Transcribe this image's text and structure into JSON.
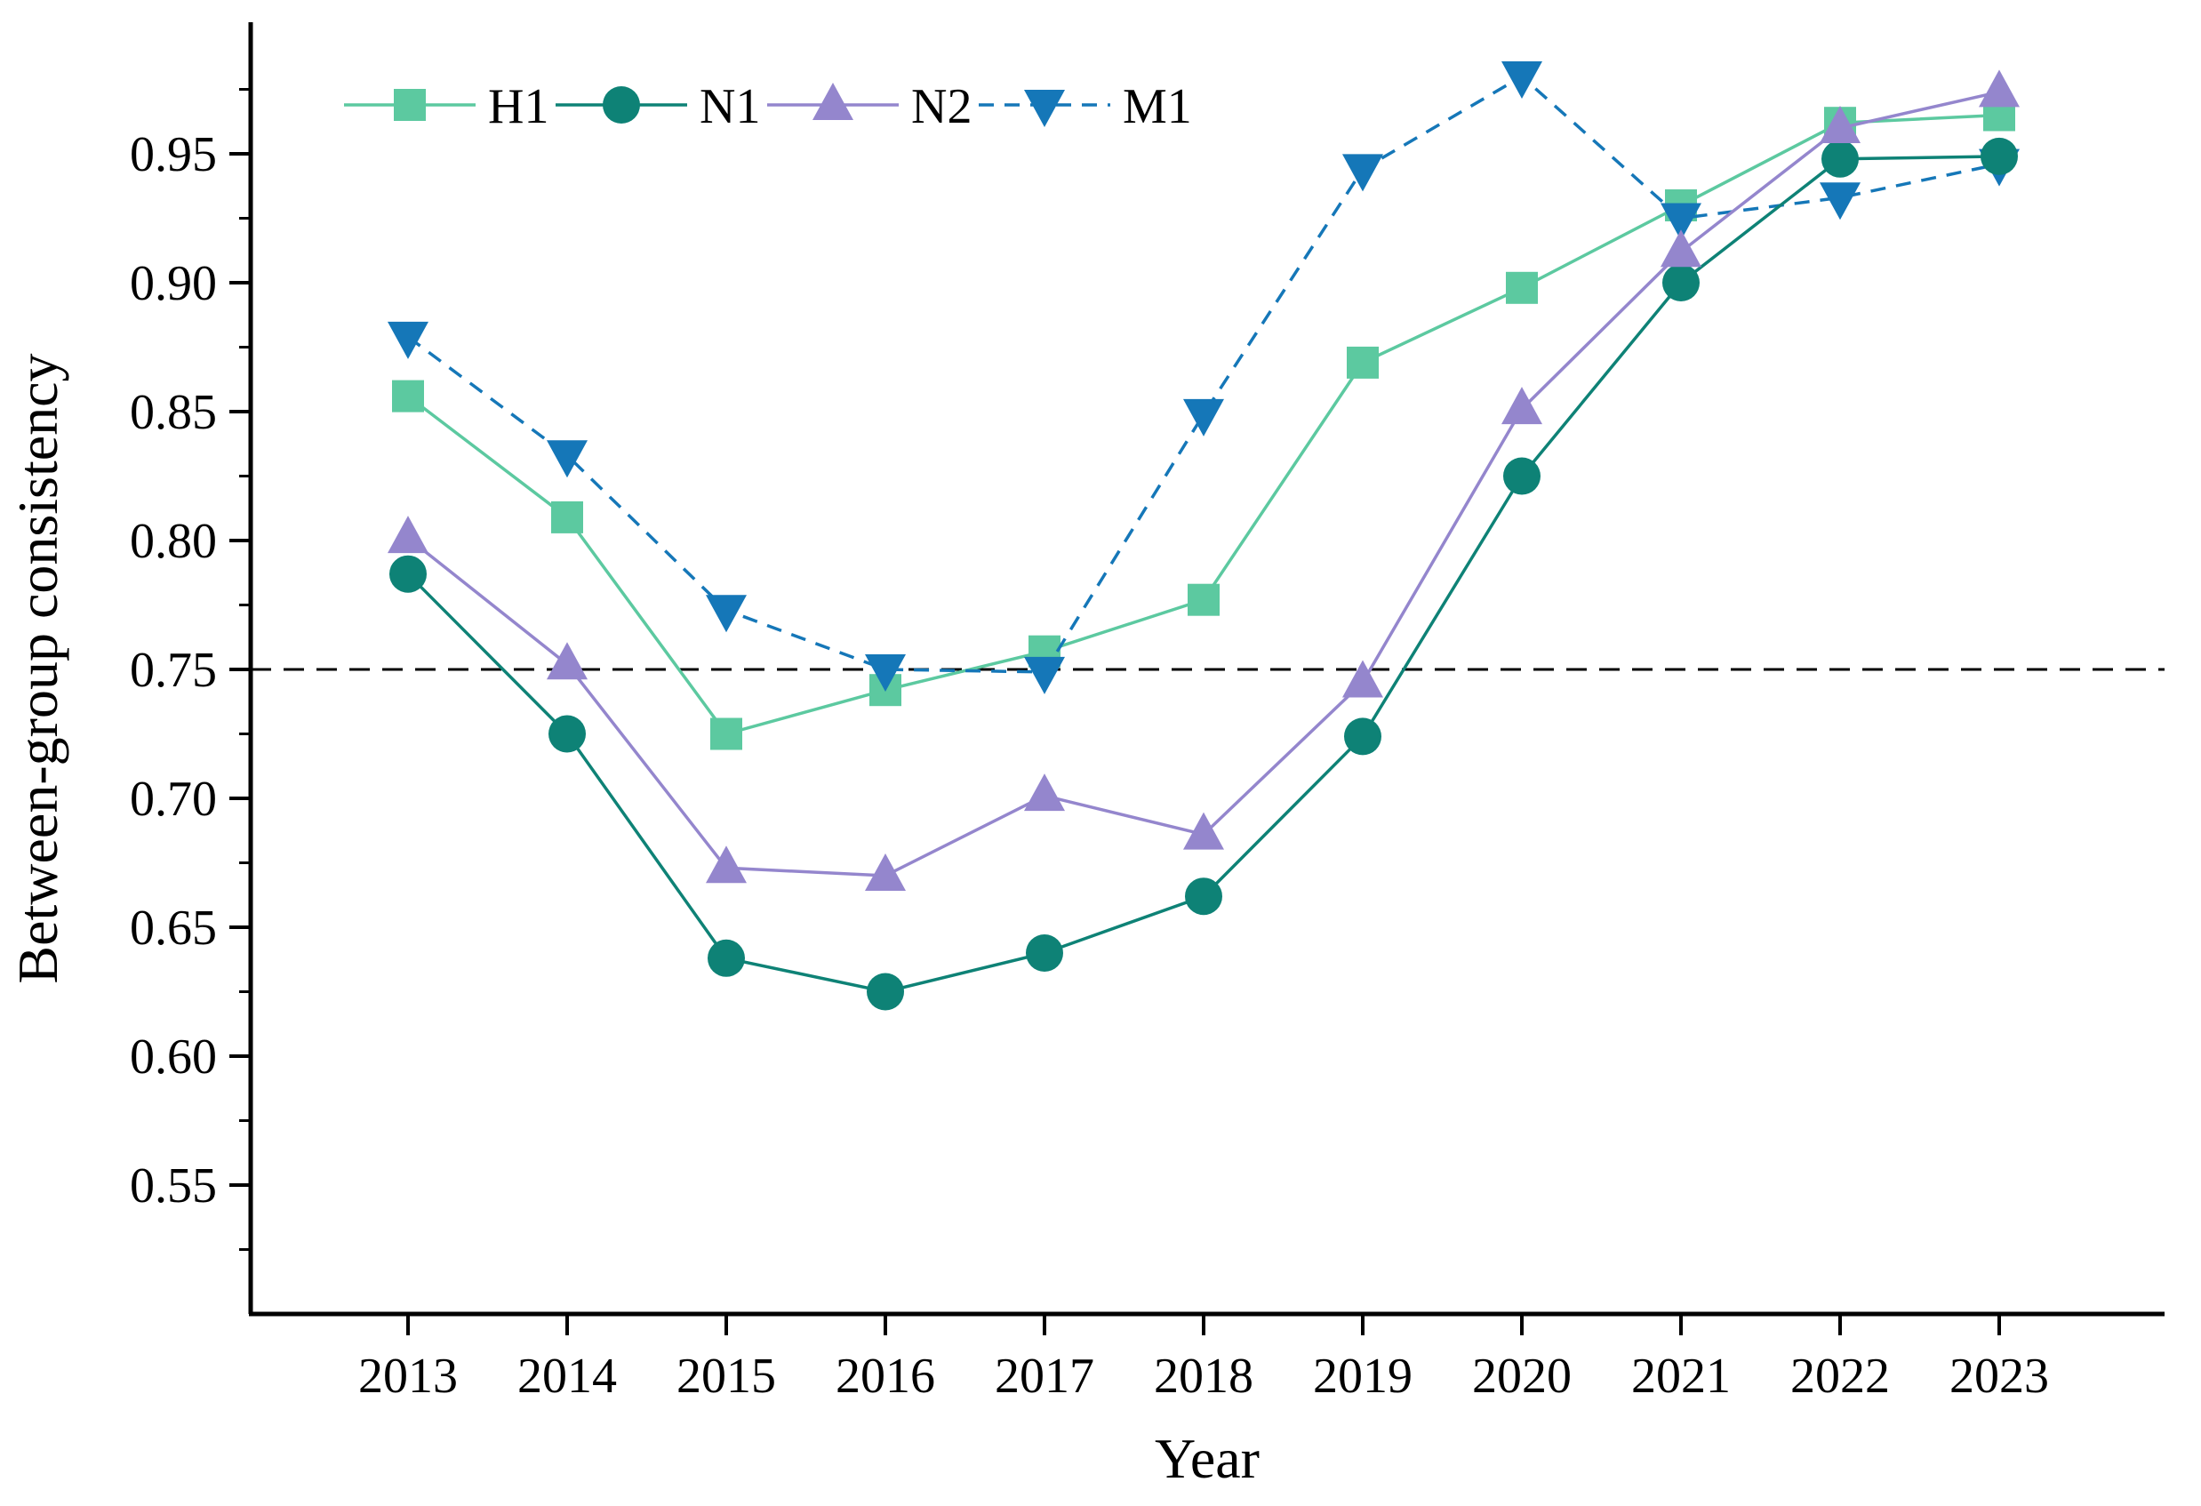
{
  "chart_data": {
    "type": "line",
    "title": "",
    "xlabel": "Year",
    "ylabel": "Between-group consistency",
    "x": [
      2013,
      2014,
      2015,
      2016,
      2017,
      2018,
      2019,
      2020,
      2021,
      2022,
      2023
    ],
    "x_ticklabels": [
      "2013",
      "2014",
      "2015",
      "2016",
      "2017",
      "2018",
      "2019",
      "2020",
      "2021",
      "2022",
      "2023"
    ],
    "ylim": [
      0.5,
      1.0
    ],
    "y_ticks_major": [
      0.55,
      0.6,
      0.65,
      0.7,
      0.75,
      0.8,
      0.85,
      0.9,
      0.95
    ],
    "y_ticklabels": [
      "0.55",
      "0.60",
      "0.65",
      "0.70",
      "0.75",
      "0.80",
      "0.85",
      "0.90",
      "0.95"
    ],
    "y_ticks_minor": [
      0.525,
      0.575,
      0.625,
      0.675,
      0.725,
      0.775,
      0.825,
      0.875,
      0.925,
      0.975
    ],
    "grid": false,
    "legend_position": "top-inside-horizontal",
    "reference_line": {
      "y": 0.75,
      "style": "dashed",
      "color": "#000000"
    },
    "axis_color": "#000000",
    "series": [
      {
        "name": "H1",
        "color": "#5CC9A0",
        "marker": "square",
        "line": "solid",
        "values": [
          0.856,
          0.809,
          0.725,
          0.742,
          0.757,
          0.777,
          0.869,
          0.898,
          0.93,
          0.962,
          0.965
        ]
      },
      {
        "name": "N1",
        "color": "#0E8276",
        "marker": "circle",
        "line": "solid",
        "values": [
          0.787,
          0.725,
          0.638,
          0.625,
          0.64,
          0.662,
          0.724,
          0.825,
          0.9,
          0.948,
          0.949
        ]
      },
      {
        "name": "N2",
        "color": "#9486CD",
        "marker": "triangle-up",
        "line": "solid",
        "values": [
          0.801,
          0.752,
          0.673,
          0.67,
          0.701,
          0.686,
          0.745,
          0.851,
          0.912,
          0.96,
          0.974
        ]
      },
      {
        "name": "M1",
        "color": "#1577B8",
        "marker": "triangle-down",
        "line": "dashed",
        "values": [
          0.879,
          0.833,
          0.773,
          0.75,
          0.749,
          0.849,
          0.944,
          0.98,
          0.925,
          0.933,
          0.946
        ]
      }
    ]
  }
}
